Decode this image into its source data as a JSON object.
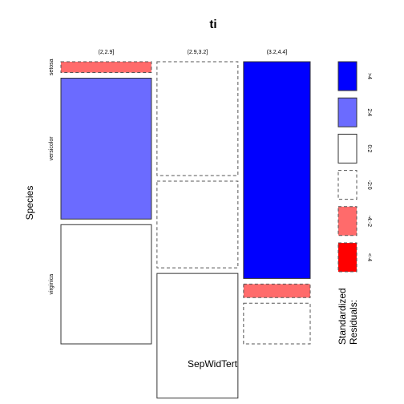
{
  "chart_data": {
    "type": "mosaic",
    "title": "ti",
    "xlabel": "SepWidTert",
    "ylabel": "Species",
    "x_levels": [
      "(2,2.9]",
      "(2.9,3.2]",
      "(3.2,4.4]"
    ],
    "y_levels": [
      "setosa",
      "versicolor",
      "virginica"
    ],
    "col_fractions": [
      0.38,
      0.34,
      0.28
    ],
    "cells": [
      [
        {
          "fraction": 0.04,
          "residual_class": "-4:-2"
        },
        {
          "fraction": 0.52,
          "residual_class": "2:4"
        },
        {
          "fraction": 0.44,
          "residual_class": "0:2"
        }
      ],
      [
        {
          "fraction": 0.42,
          "residual_class": "-2:0"
        },
        {
          "fraction": 0.32,
          "residual_class": "-2:0"
        },
        {
          "fraction": 0.46,
          "residual_class": "0:2"
        }
      ],
      [
        {
          "fraction": 0.8,
          "residual_class": ">4"
        },
        {
          "fraction": 0.05,
          "residual_class": "-4:-2"
        },
        {
          "fraction": 0.15,
          "residual_class": "-2:0"
        }
      ]
    ],
    "legend": {
      "title": "Standardized Residuals:",
      "entries": [
        {
          "label": ">4",
          "color": "#0000ff",
          "dashed": false
        },
        {
          "label": "2:4",
          "color": "#6b6bff",
          "dashed": false
        },
        {
          "label": "0:2",
          "color": "#ffffff",
          "dashed": false
        },
        {
          "label": "-2:0",
          "color": "#ffffff",
          "dashed": true
        },
        {
          "label": "-4:-2",
          "color": "#ff6b6b",
          "dashed": true
        },
        {
          "label": "<-4",
          "color": "#ff0000",
          "dashed": true
        }
      ]
    }
  }
}
